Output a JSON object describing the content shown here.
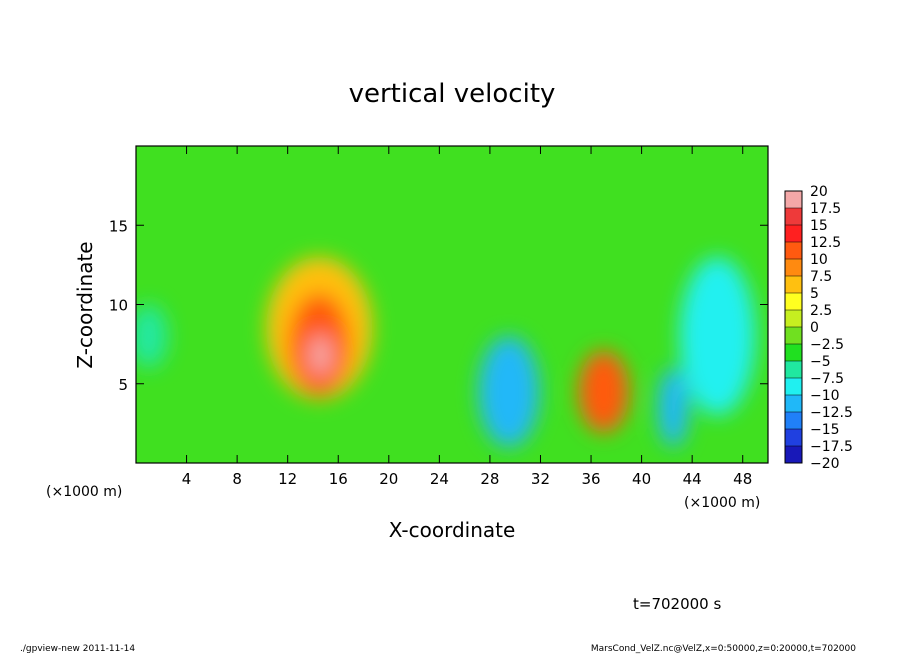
{
  "chart_data": {
    "type": "heatmap",
    "title": "vertical velocity",
    "xlabel": "X-coordinate",
    "ylabel": "Z-coordinate",
    "x_unit": "(×1000 m)",
    "y_unit": "(×1000 m)",
    "xlim": [
      0,
      50
    ],
    "ylim": [
      0,
      20
    ],
    "x_ticks": [
      4,
      8,
      12,
      16,
      20,
      24,
      28,
      32,
      36,
      40,
      44,
      48
    ],
    "y_ticks": [
      5,
      10,
      15
    ],
    "colorbar": {
      "levels": [
        "20",
        "17.5",
        "15",
        "12.5",
        "10",
        "7.5",
        "5",
        "2.5",
        "0",
        "−2.5",
        "−5",
        "−7.5",
        "−10",
        "−12.5",
        "−15",
        "−17.5",
        "−20"
      ],
      "colors": [
        "#f4a8a8",
        "#ee3a3a",
        "#ff2020",
        "#ff5a10",
        "#ff8a10",
        "#ffc010",
        "#ffff20",
        "#c6ef20",
        "#70e020",
        "#20e020",
        "#20e8a0",
        "#20f0f0",
        "#20b8f8",
        "#2080f8",
        "#2040e0",
        "#1818b8",
        "#6a1aaa"
      ]
    },
    "features": [
      {
        "x": 14.6,
        "z": 6.8,
        "value": 19,
        "rx": 0.9,
        "rz": 1.3
      },
      {
        "x": 14.5,
        "z": 7.5,
        "value": 12,
        "rx": 2.4,
        "rz": 3.2
      },
      {
        "x": 14.5,
        "z": 8.5,
        "value": 7,
        "rx": 4.2,
        "rz": 4.5
      },
      {
        "x": 37,
        "z": 4.5,
        "value": 12,
        "rx": 2.0,
        "rz": 2.6
      },
      {
        "x": 29.5,
        "z": 4.5,
        "value": -11,
        "rx": 2.4,
        "rz": 3.5
      },
      {
        "x": 42.5,
        "z": 3.5,
        "value": -10,
        "rx": 1.2,
        "rz": 2.5
      },
      {
        "x": 46,
        "z": 8,
        "value": -8,
        "rx": 3.0,
        "rz": 5.0
      },
      {
        "x": 1,
        "z": 8,
        "value": -6,
        "rx": 1.5,
        "rz": 2.0
      }
    ],
    "annotations": {
      "time": "t=702000 s",
      "program": "./gpview-new   2011-11-14",
      "source": "MarsCond_VelZ.nc@VelZ,x=0:50000,z=0:20000,t=702000"
    }
  }
}
